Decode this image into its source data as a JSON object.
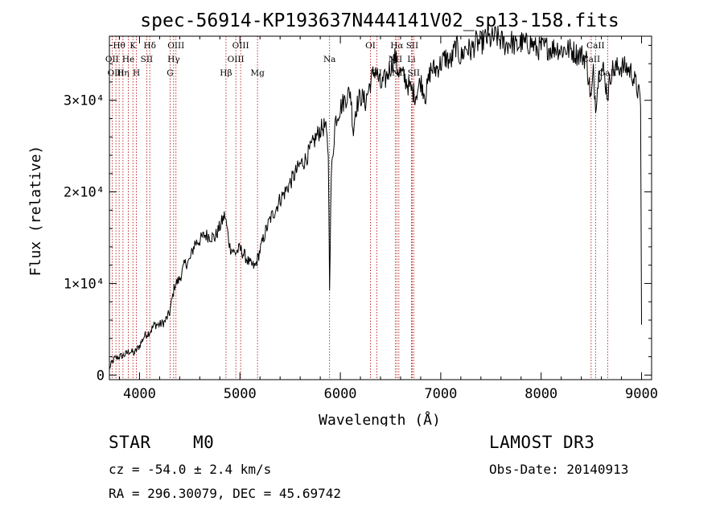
{
  "chart_data": {
    "type": "line",
    "title": "spec-56914-KP193637N444141V02_sp13-158.fits",
    "xlabel": "Wavelength (Å)",
    "ylabel": "Flux (relative)",
    "xlim": [
      3700,
      9100
    ],
    "ylim": [
      -500,
      37000
    ],
    "x_ticks": [
      4000,
      5000,
      6000,
      7000,
      8000,
      9000
    ],
    "y_ticks": [
      {
        "value": 0,
        "label": "0"
      },
      {
        "value": 10000,
        "label": "1×10⁴"
      },
      {
        "value": 20000,
        "label": "2×10⁴"
      },
      {
        "value": 30000,
        "label": "3×10⁴"
      }
    ],
    "series": [
      {
        "name": "spectrum",
        "x": [
          3700,
          3750,
          3800,
          3850,
          3900,
          3950,
          4000,
          4050,
          4100,
          4150,
          4200,
          4250,
          4300,
          4350,
          4400,
          4450,
          4500,
          4550,
          4600,
          4650,
          4700,
          4750,
          4800,
          4850,
          4900,
          4950,
          5000,
          5050,
          5100,
          5150,
          5200,
          5250,
          5300,
          5350,
          5400,
          5450,
          5500,
          5550,
          5600,
          5650,
          5700,
          5750,
          5800,
          5850,
          5880,
          5893,
          5910,
          5950,
          6000,
          6050,
          6100,
          6130,
          6150,
          6200,
          6250,
          6300,
          6350,
          6400,
          6450,
          6500,
          6550,
          6563,
          6600,
          6650,
          6700,
          6750,
          6800,
          6850,
          6900,
          6950,
          7000,
          7050,
          7100,
          7150,
          7200,
          7250,
          7300,
          7350,
          7400,
          7450,
          7500,
          7550,
          7600,
          7650,
          7700,
          7750,
          7800,
          7850,
          7900,
          7950,
          8000,
          8050,
          8100,
          8150,
          8200,
          8250,
          8300,
          8350,
          8400,
          8450,
          8498,
          8520,
          8542,
          8580,
          8620,
          8662,
          8700,
          8750,
          8800,
          8850,
          8900,
          8950,
          8990,
          9000
        ],
        "y": [
          800,
          1800,
          2000,
          2200,
          2600,
          2400,
          3200,
          4300,
          4700,
          5500,
          5500,
          5800,
          6800,
          9800,
          10500,
          12100,
          12500,
          14400,
          14700,
          15300,
          15200,
          15000,
          16200,
          17500,
          14000,
          13300,
          13800,
          13000,
          12100,
          11800,
          13600,
          15500,
          17000,
          18000,
          19200,
          20000,
          21000,
          22000,
          23000,
          23500,
          24600,
          25800,
          26800,
          27200,
          24500,
          9800,
          21800,
          27800,
          29200,
          30200,
          31000,
          26500,
          29000,
          30500,
          29800,
          32000,
          33500,
          31500,
          32300,
          33700,
          34800,
          33500,
          33000,
          32200,
          31200,
          30600,
          32100,
          30500,
          33400,
          33400,
          34000,
          34700,
          34100,
          36000,
          34600,
          35800,
          35400,
          36300,
          36200,
          36800,
          36600,
          37000,
          36500,
          36000,
          36500,
          35800,
          36300,
          36100,
          36300,
          35600,
          35700,
          35800,
          35600,
          35800,
          35500,
          35600,
          35500,
          35100,
          35000,
          34500,
          30000,
          33000,
          29500,
          33300,
          33300,
          30500,
          33300,
          33500,
          33700,
          33500,
          33100,
          31500,
          30000,
          5500
        ]
      }
    ],
    "lines": [
      {
        "label": "Hθ",
        "x": 3797,
        "row": 0
      },
      {
        "label": "OII",
        "x": 3727,
        "row": 1
      },
      {
        "label": "OIII",
        "x": 3765,
        "row": 2
      },
      {
        "label": "Hη",
        "x": 3835,
        "row": 2
      },
      {
        "label": "He",
        "x": 3889,
        "row": 1
      },
      {
        "label": "K",
        "x": 3934,
        "row": 0
      },
      {
        "label": "H",
        "x": 3969,
        "row": 2
      },
      {
        "label": "SII",
        "x": 4072,
        "row": 1
      },
      {
        "label": "Hδ",
        "x": 4102,
        "row": 0
      },
      {
        "label": "G",
        "x": 4304,
        "row": 2
      },
      {
        "label": "Hγ",
        "x": 4340,
        "row": 1
      },
      {
        "label": "OIII",
        "x": 4363,
        "row": 0
      },
      {
        "label": "Hβ",
        "x": 4861,
        "row": 2
      },
      {
        "label": "OIII",
        "x": 4959,
        "row": 1
      },
      {
        "label": "OIII",
        "x": 5007,
        "row": 0
      },
      {
        "label": "Mg",
        "x": 5175,
        "row": 2
      },
      {
        "label": "Na",
        "x": 5893,
        "row": 1
      },
      {
        "label": "OI",
        "x": 6300,
        "row": 0
      },
      {
        "label": "OI",
        "x": 6364,
        "row": 2
      },
      {
        "label": "NII",
        "x": 6548,
        "row": 1
      },
      {
        "label": "Hα",
        "x": 6563,
        "row": 0
      },
      {
        "label": "NII",
        "x": 6583,
        "row": 2
      },
      {
        "label": "Li",
        "x": 6708,
        "row": 1
      },
      {
        "label": "SII",
        "x": 6716,
        "row": 0
      },
      {
        "label": "SII",
        "x": 6731,
        "row": 2
      },
      {
        "label": "CaII",
        "x": 8498,
        "row": 1
      },
      {
        "label": "CaII",
        "x": 8542,
        "row": 0
      },
      {
        "label": "CaII",
        "x": 8662,
        "row": 2
      }
    ]
  },
  "info": {
    "class": "STAR",
    "subclass": "M0",
    "survey": "LAMOST DR3",
    "cz": "cz = -54.0 ± 2.4 km/s",
    "obs_date": "Obs-Date: 20140913",
    "coords": "RA = 296.30079, DEC =  45.69742"
  },
  "colors": {
    "spectrum": "#000000",
    "line_marker": "#b00000"
  }
}
